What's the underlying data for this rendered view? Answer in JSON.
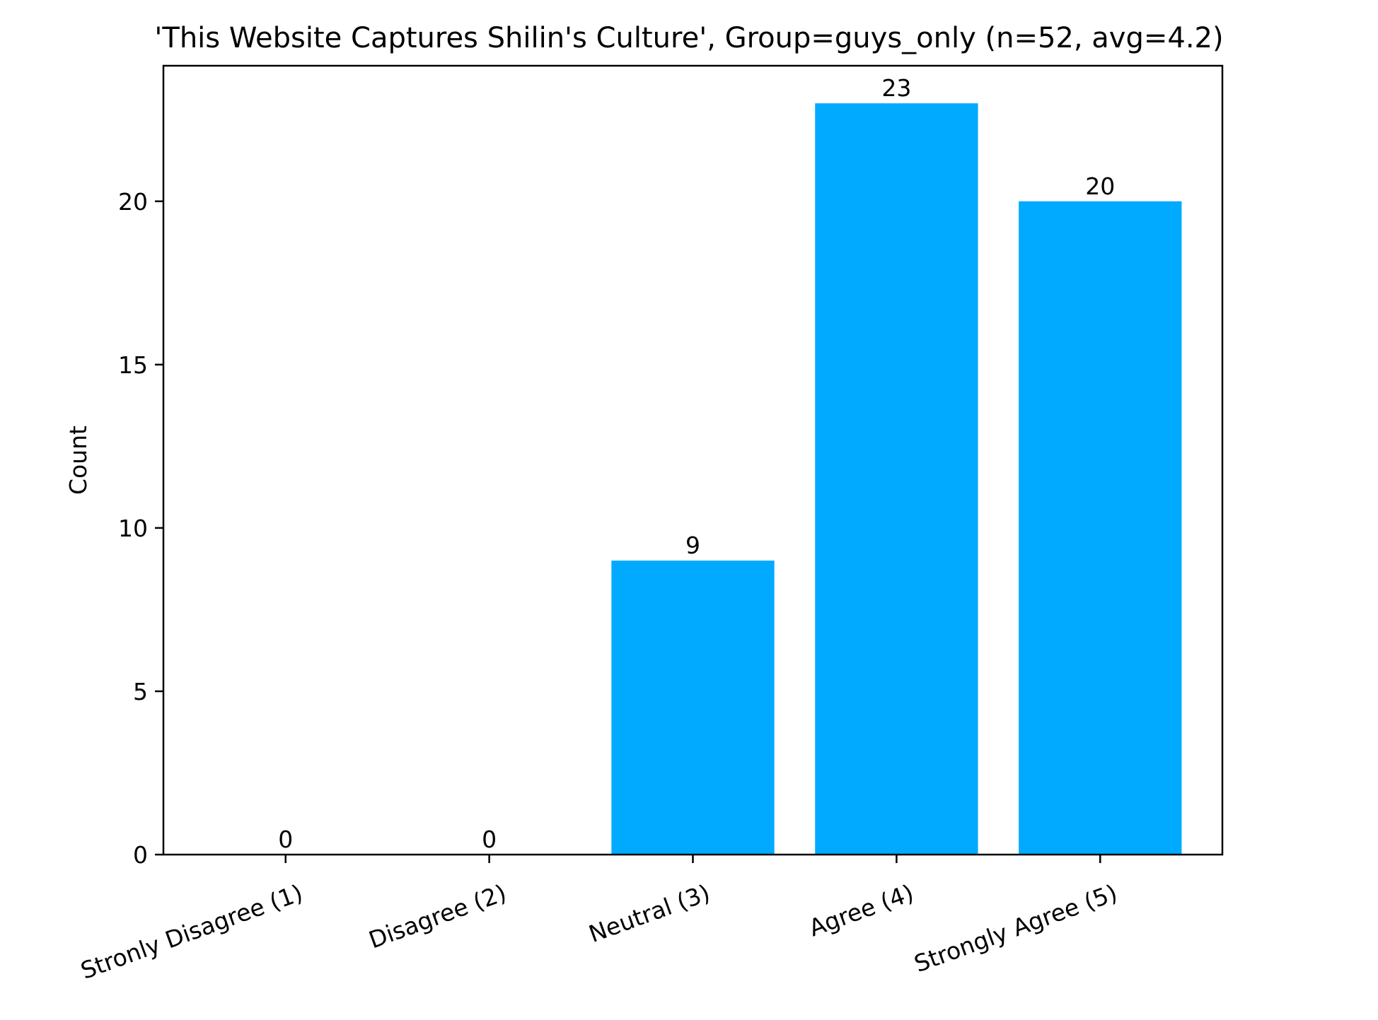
{
  "chart_data": {
    "type": "bar",
    "title": "'This Website Captures Shilin's Culture', Group=guys_only (n=52, avg=4.2)",
    "xlabel": "",
    "ylabel": "Count",
    "categories": [
      "Stronly Disagree (1)",
      "Disagree (2)",
      "Neutral (3)",
      "Agree (4)",
      "Strongly Agree (5)"
    ],
    "values": [
      0,
      0,
      9,
      23,
      20
    ],
    "data_labels": [
      "0",
      "0",
      "9",
      "23",
      "20"
    ],
    "ylim": [
      0,
      24.15
    ],
    "yticks": [
      0,
      5,
      10,
      15,
      20
    ],
    "ytick_labels": [
      "0",
      "5",
      "10",
      "15",
      "20"
    ],
    "bar_color": "#02aaff",
    "grid": false,
    "legend": "none"
  }
}
